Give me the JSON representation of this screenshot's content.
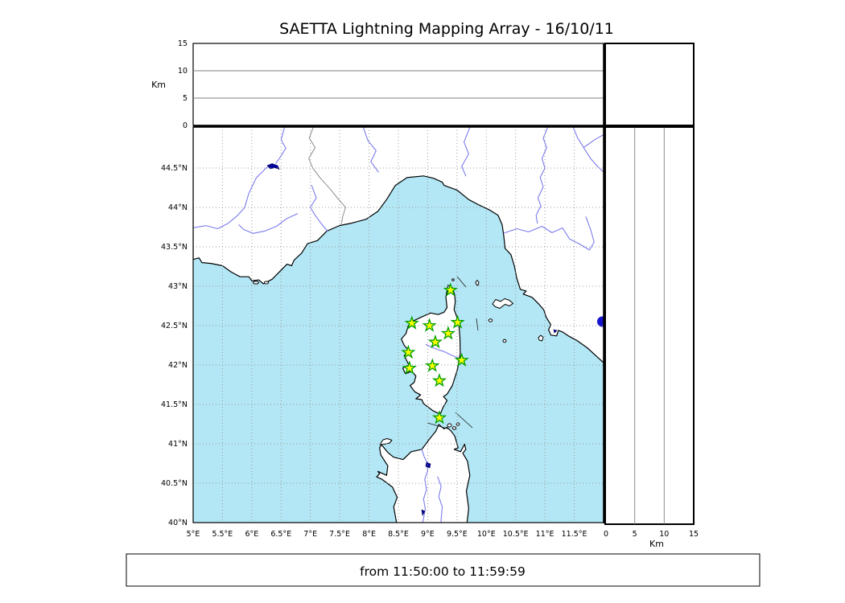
{
  "title": "SAETTA Lightning Mapping Array - 16/10/11",
  "footer": {
    "time_range": "from 11:50:00 to 11:59:59"
  },
  "axes": {
    "alt_label": "Km",
    "alt_ticks": [
      "0",
      "5",
      "10",
      "15"
    ],
    "alt_range_km": [
      0,
      15
    ],
    "lon_ticks": [
      "5°E",
      "5.5°E",
      "6°E",
      "6.5°E",
      "7°E",
      "7.5°E",
      "8°E",
      "8.5°E",
      "9°E",
      "9.5°E",
      "10°E",
      "10.5°E",
      "11°E",
      "11.5°E"
    ],
    "lat_ticks": [
      "44.5°N",
      "44°N",
      "43.5°N",
      "43°N",
      "42.5°N",
      "42°N",
      "41.5°N",
      "41°N",
      "40.5°N",
      "40°N"
    ],
    "lon_range_deg": [
      5,
      12
    ],
    "lat_range_deg": [
      40,
      45
    ],
    "grid_step_deg": 0.5
  },
  "map": {
    "colors": {
      "sea": "#b3e7f5",
      "land": "#ffffff",
      "coast": "#000000",
      "river": "#7b7bee",
      "lake": "#0000a0",
      "lake_bolsena": "#1414cf",
      "grid": "#999999",
      "border": "#808080",
      "station_fill": "#ffff00",
      "station_edge": "#00a000"
    },
    "stations": [
      {
        "lon": 9.39,
        "lat": 42.95
      },
      {
        "lon": 8.73,
        "lat": 42.53
      },
      {
        "lon": 9.03,
        "lat": 42.5
      },
      {
        "lon": 9.51,
        "lat": 42.54
      },
      {
        "lon": 9.35,
        "lat": 42.4
      },
      {
        "lon": 9.13,
        "lat": 42.29
      },
      {
        "lon": 8.67,
        "lat": 42.16
      },
      {
        "lon": 9.58,
        "lat": 42.06
      },
      {
        "lon": 8.69,
        "lat": 41.96
      },
      {
        "lon": 9.08,
        "lat": 41.99
      },
      {
        "lon": 9.2,
        "lat": 41.8
      },
      {
        "lon": 9.2,
        "lat": 41.33
      }
    ]
  }
}
